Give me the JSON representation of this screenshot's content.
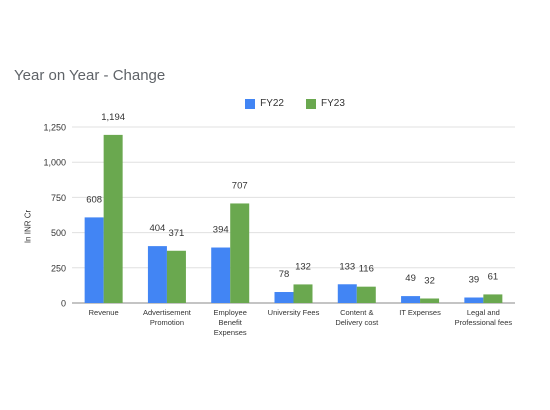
{
  "chart_data": {
    "type": "bar",
    "title": "Year on Year - Change",
    "ylabel": "In INR Cr",
    "xlabel": "",
    "ylim": [
      0,
      1250
    ],
    "yticks": [
      0,
      250,
      500,
      750,
      "1,000",
      "1,250"
    ],
    "grid": true,
    "legend_position": "top",
    "categories": [
      [
        "Revenue"
      ],
      [
        "Advertisement",
        "Promotion"
      ],
      [
        "Employee",
        "Benefit",
        "Expenses"
      ],
      [
        "University Fees"
      ],
      [
        "Content &",
        "Delivery cost"
      ],
      [
        "IT Expenses"
      ],
      [
        "Legal and",
        "Professional fees"
      ]
    ],
    "series": [
      {
        "name": "FY22",
        "color": "#4285f4",
        "values": [
          608,
          404,
          394,
          78,
          133,
          49,
          39
        ],
        "labels": [
          "608",
          "404",
          "394",
          "78",
          "133",
          "49",
          "39"
        ]
      },
      {
        "name": "FY23",
        "color": "#6aa84f",
        "values": [
          1194,
          371,
          707,
          132,
          116,
          32,
          61
        ],
        "labels": [
          "1,194",
          "371",
          "707",
          "132",
          "116",
          "32",
          "61"
        ]
      }
    ]
  }
}
